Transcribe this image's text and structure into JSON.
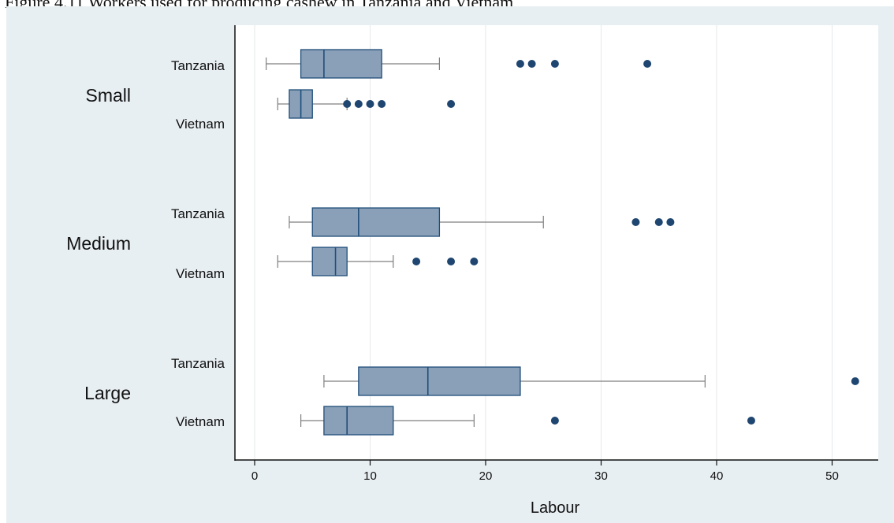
{
  "caption": "Figure 4.11        Workers used for producing cashew in Tanzania and Vietnam",
  "colors": {
    "outer_background": "#e8eff2",
    "plot_background": "#ffffff",
    "box_fill": "#8aa0b8",
    "box_stroke": "#1f4e79",
    "outlier": "#1f4670",
    "whisker": "#7f7f7f",
    "grid": "#e4e8ea"
  },
  "chart_data": {
    "type": "boxplot",
    "orientation": "horizontal",
    "title": "",
    "xlabel": "Labour",
    "ylabel": "",
    "xlim": [
      -2,
      54
    ],
    "xticks": [
      0,
      10,
      20,
      30,
      40,
      50
    ],
    "grid": true,
    "groups": [
      {
        "name": "Small",
        "boxes": [
          {
            "name": "Tanzania",
            "min": 1,
            "q1": 4,
            "median": 6,
            "q3": 11,
            "max": 16,
            "outliers": [
              23,
              24,
              26,
              34
            ]
          },
          {
            "name": "Vietnam",
            "min": 2,
            "q1": 3,
            "median": 4,
            "q3": 5,
            "max": 8,
            "outliers": [
              8,
              9,
              10,
              11,
              17
            ]
          }
        ]
      },
      {
        "name": "Medium",
        "boxes": [
          {
            "name": "Tanzania",
            "min": 3,
            "q1": 5,
            "median": 9,
            "q3": 16,
            "max": 25,
            "outliers": [
              33,
              35,
              36
            ]
          },
          {
            "name": "Vietnam",
            "min": 2,
            "q1": 5,
            "median": 7,
            "q3": 8,
            "max": 12,
            "outliers": [
              14,
              17,
              19
            ]
          }
        ]
      },
      {
        "name": "Large",
        "boxes": [
          {
            "name": "Tanzania",
            "min": 6,
            "q1": 9,
            "median": 15,
            "q3": 23,
            "max": 39,
            "outliers": [
              52
            ]
          },
          {
            "name": "Vietnam",
            "min": 4,
            "q1": 6,
            "median": 8,
            "q3": 12,
            "max": 19,
            "outliers": [
              26,
              43
            ]
          }
        ]
      }
    ]
  }
}
